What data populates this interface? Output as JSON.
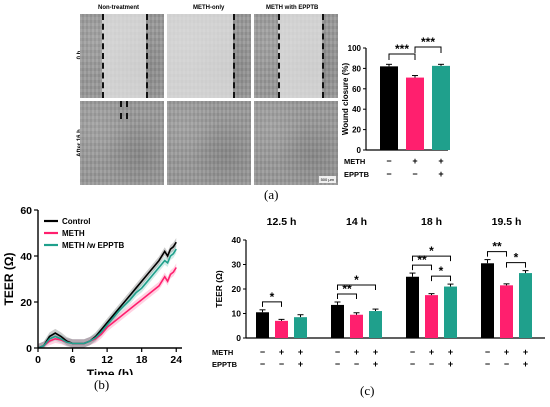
{
  "panel_a": {
    "label": "(a)",
    "column_headers": [
      "Non-treatment",
      "METH-only",
      "METH with EPPTB"
    ],
    "row_labels": [
      "0 h",
      "After 16 h"
    ],
    "scale_bar": "500 μm"
  },
  "panel_b": {
    "label": "(b)"
  },
  "panel_c": {
    "label": "(c)"
  },
  "colors": {
    "control": "#000000",
    "meth": "#ff1f6e",
    "eptb": "#1fa08c"
  },
  "chart_data": [
    {
      "id": "wound-closure",
      "type": "bar",
      "ylabel": "Wound closure (%)",
      "ylim": [
        0,
        100
      ],
      "yticks": [
        0,
        20,
        40,
        60,
        80,
        100
      ],
      "values": [
        82,
        71,
        82.5
      ],
      "errors": [
        2,
        2,
        1.5
      ],
      "colors": [
        "#000000",
        "#ff1f6e",
        "#1fa08c"
      ],
      "condition_labels": [
        "METH",
        "EPPTB"
      ],
      "conditions": [
        [
          "−",
          "+",
          "+"
        ],
        [
          "−",
          "−",
          "+"
        ]
      ],
      "significance": [
        {
          "from": 0,
          "to": 1,
          "text": "***"
        },
        {
          "from": 1,
          "to": 2,
          "text": "***"
        }
      ]
    },
    {
      "id": "teer-timecourse",
      "type": "line",
      "xlabel": "Time (h)",
      "ylabel": "TEER (Ω)",
      "xlim": [
        0,
        25
      ],
      "ylim": [
        0,
        60
      ],
      "xticks": [
        0,
        6,
        12,
        18,
        24
      ],
      "yticks": [
        0,
        20,
        40,
        60
      ],
      "legend_position": "top-left",
      "series": [
        {
          "name": "Control",
          "color": "#000000",
          "x": [
            0,
            1,
            2,
            3,
            4,
            5,
            6,
            7,
            8,
            9,
            10,
            11,
            12,
            13,
            14,
            15,
            16,
            17,
            18,
            19,
            20,
            21,
            22,
            22.5,
            23,
            23.5,
            24
          ],
          "y": [
            0,
            1,
            5,
            6.5,
            5,
            3,
            2,
            2,
            2,
            3,
            5,
            8,
            11,
            14,
            17,
            20,
            23,
            26,
            29,
            32,
            35,
            38,
            42,
            40,
            43,
            44,
            46
          ]
        },
        {
          "name": "METH",
          "color": "#ff1f6e",
          "x": [
            0,
            1,
            2,
            3,
            4,
            5,
            6,
            7,
            8,
            9,
            10,
            11,
            12,
            13,
            14,
            15,
            16,
            17,
            18,
            19,
            20,
            21,
            22,
            22.5,
            23,
            23.5,
            24
          ],
          "y": [
            0,
            1,
            3,
            4,
            3.5,
            2.5,
            2,
            2,
            2,
            3,
            4,
            6,
            9,
            11,
            13,
            15,
            17,
            19,
            21,
            23,
            25,
            27,
            31,
            29,
            32,
            33,
            35
          ]
        },
        {
          "name": "METH /w EPPTB",
          "color": "#1fa08c",
          "x": [
            0,
            1,
            2,
            3,
            4,
            5,
            6,
            7,
            8,
            9,
            10,
            11,
            12,
            13,
            14,
            15,
            16,
            17,
            18,
            19,
            20,
            21,
            22,
            22.5,
            23,
            23.5,
            24
          ],
          "y": [
            0,
            1,
            4,
            5,
            4,
            2.5,
            2,
            2,
            2,
            3,
            4.5,
            7,
            10,
            13,
            16,
            18.5,
            21,
            24,
            26,
            29,
            32,
            35,
            38,
            37,
            40,
            41,
            43
          ]
        }
      ]
    },
    {
      "id": "teer-timepoints",
      "type": "bar",
      "ylabel": "TEER (Ω)",
      "ylim": [
        0,
        40
      ],
      "yticks": [
        0,
        10,
        20,
        30,
        40
      ],
      "groups": [
        "12.5 h",
        "14 h",
        "18 h",
        "19.5 h"
      ],
      "values": [
        [
          10.5,
          7,
          8.5
        ],
        [
          13.5,
          9.5,
          11
        ],
        [
          25,
          17.5,
          21
        ],
        [
          30.5,
          21.5,
          26.5
        ]
      ],
      "errors": [
        [
          1,
          0.6,
          1
        ],
        [
          1.2,
          0.8,
          0.8
        ],
        [
          1.5,
          0.6,
          1
        ],
        [
          1.5,
          0.6,
          1
        ]
      ],
      "colors": [
        "#000000",
        "#ff1f6e",
        "#1fa08c"
      ],
      "condition_labels": [
        "METH",
        "EPPTB"
      ],
      "conditions": [
        [
          "−",
          "+",
          "+"
        ],
        [
          "−",
          "−",
          "+"
        ]
      ],
      "significance": [
        {
          "group": 0,
          "from": 0,
          "to": 1,
          "text": "*"
        },
        {
          "group": 1,
          "from": 0,
          "to": 1,
          "text": "**"
        },
        {
          "group": 1,
          "from": 0,
          "to": 2,
          "text": "*"
        },
        {
          "group": 2,
          "from": 0,
          "to": 1,
          "text": "**"
        },
        {
          "group": 2,
          "from": 1,
          "to": 2,
          "text": "*"
        },
        {
          "group": 2,
          "from": 0,
          "to": 2,
          "text": "*"
        },
        {
          "group": 3,
          "from": 0,
          "to": 1,
          "text": "**"
        },
        {
          "group": 3,
          "from": 1,
          "to": 2,
          "text": "*"
        }
      ]
    }
  ]
}
